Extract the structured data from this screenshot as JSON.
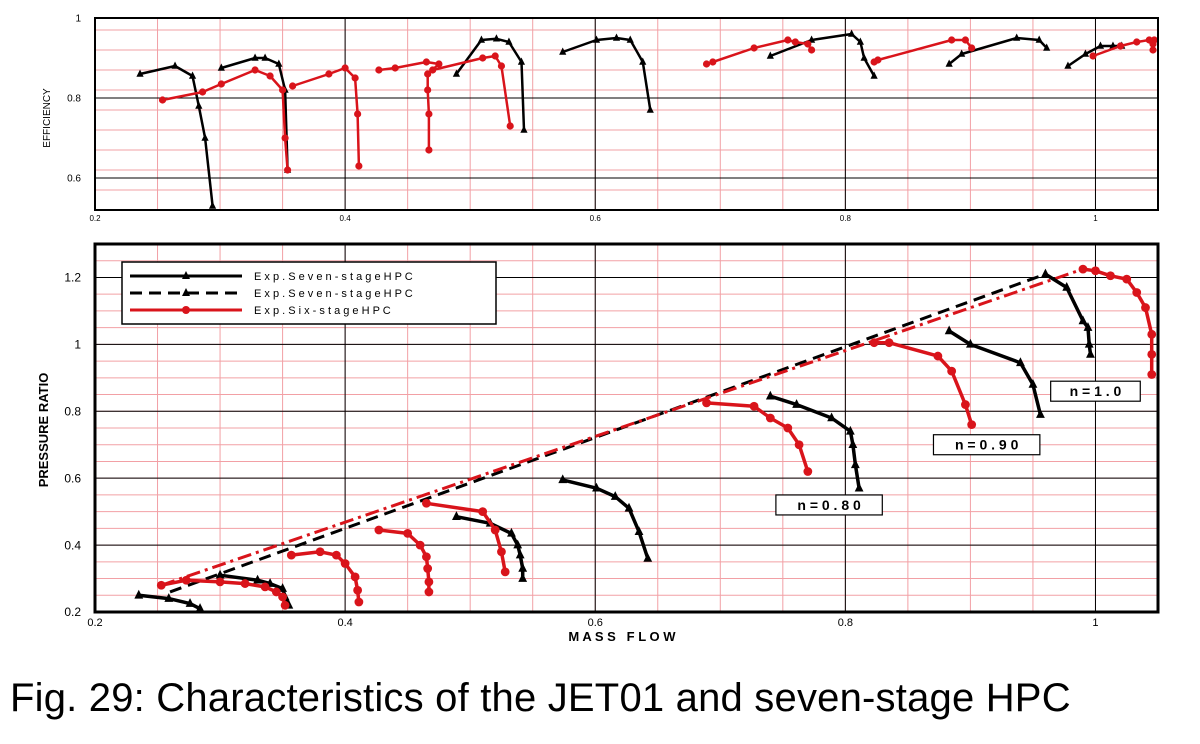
{
  "caption": "Fig. 29: Characteristics of the JET01 and seven-stage HPC",
  "chart_data": [
    {
      "type": "line",
      "id": "efficiency",
      "ylabel": "EFFICIENCY",
      "xlim": [
        0.2,
        1.05
      ],
      "ylim": [
        0.52,
        1.0
      ],
      "xticks": [
        0.2,
        0.4,
        0.6,
        0.8,
        1.0
      ],
      "xticklabels": [
        "0.2",
        "0.4",
        "0.6",
        "0.8",
        "1"
      ],
      "yticks": [
        0.6,
        0.8,
        1.0
      ],
      "yticklabels": [
        "0.6",
        "0.8",
        "1"
      ],
      "grid": true,
      "colors": {
        "exp": "#000000",
        "six": "#d9141b",
        "grid_minor": "#f2a0a5",
        "grid_major": "#000000"
      },
      "series": [
        {
          "group": "exp",
          "marker": "triangle",
          "points": [
            [
              0.236,
              0.86
            ],
            [
              0.264,
              0.88
            ],
            [
              0.278,
              0.855
            ],
            [
              0.283,
              0.78
            ],
            [
              0.288,
              0.7
            ],
            [
              0.294,
              0.53
            ]
          ]
        },
        {
          "group": "exp",
          "marker": "triangle",
          "points": [
            [
              0.301,
              0.875
            ],
            [
              0.328,
              0.9
            ],
            [
              0.336,
              0.9
            ],
            [
              0.347,
              0.885
            ],
            [
              0.352,
              0.82
            ],
            [
              0.354,
              0.62
            ]
          ]
        },
        {
          "group": "exp",
          "marker": "triangle",
          "points": [
            [
              0.489,
              0.86
            ],
            [
              0.509,
              0.945
            ],
            [
              0.521,
              0.948
            ],
            [
              0.531,
              0.94
            ],
            [
              0.541,
              0.89
            ],
            [
              0.543,
              0.72
            ]
          ]
        },
        {
          "group": "exp",
          "marker": "triangle",
          "points": [
            [
              0.574,
              0.915
            ],
            [
              0.601,
              0.945
            ],
            [
              0.617,
              0.95
            ],
            [
              0.628,
              0.945
            ],
            [
              0.638,
              0.89
            ],
            [
              0.644,
              0.77
            ]
          ]
        },
        {
          "group": "exp",
          "marker": "triangle",
          "points": [
            [
              0.74,
              0.905
            ],
            [
              0.773,
              0.945
            ],
            [
              0.805,
              0.96
            ],
            [
              0.812,
              0.94
            ],
            [
              0.815,
              0.9
            ],
            [
              0.823,
              0.855
            ]
          ]
        },
        {
          "group": "exp",
          "marker": "triangle",
          "points": [
            [
              0.883,
              0.885
            ],
            [
              0.893,
              0.91
            ],
            [
              0.937,
              0.95
            ],
            [
              0.955,
              0.945
            ],
            [
              0.961,
              0.925
            ]
          ]
        },
        {
          "group": "exp",
          "marker": "triangle",
          "points": [
            [
              0.978,
              0.88
            ],
            [
              0.992,
              0.91
            ],
            [
              1.004,
              0.93
            ],
            [
              1.014,
              0.93
            ],
            [
              1.021,
              0.93
            ]
          ]
        },
        {
          "group": "six",
          "marker": "circle",
          "points": [
            [
              0.254,
              0.795
            ],
            [
              0.286,
              0.815
            ],
            [
              0.301,
              0.835
            ],
            [
              0.328,
              0.87
            ],
            [
              0.34,
              0.855
            ],
            [
              0.35,
              0.82
            ],
            [
              0.352,
              0.7
            ],
            [
              0.354,
              0.62
            ]
          ]
        },
        {
          "group": "six",
          "marker": "circle",
          "points": [
            [
              0.358,
              0.83
            ],
            [
              0.387,
              0.86
            ],
            [
              0.4,
              0.875
            ],
            [
              0.408,
              0.85
            ],
            [
              0.41,
              0.76
            ],
            [
              0.411,
              0.63
            ]
          ]
        },
        {
          "group": "six",
          "marker": "circle",
          "points": [
            [
              0.427,
              0.87
            ],
            [
              0.44,
              0.875
            ],
            [
              0.465,
              0.89
            ],
            [
              0.475,
              0.885
            ],
            [
              0.466,
              0.86
            ],
            [
              0.466,
              0.82
            ],
            [
              0.467,
              0.76
            ],
            [
              0.467,
              0.67
            ]
          ]
        },
        {
          "group": "six",
          "marker": "circle",
          "points": [
            [
              0.47,
              0.87
            ],
            [
              0.51,
              0.9
            ],
            [
              0.52,
              0.905
            ],
            [
              0.525,
              0.88
            ],
            [
              0.532,
              0.73
            ]
          ]
        },
        {
          "group": "six",
          "marker": "circle",
          "points": [
            [
              0.689,
              0.885
            ],
            [
              0.694,
              0.89
            ],
            [
              0.727,
              0.925
            ],
            [
              0.754,
              0.945
            ],
            [
              0.76,
              0.94
            ],
            [
              0.77,
              0.935
            ],
            [
              0.773,
              0.92
            ]
          ]
        },
        {
          "group": "six",
          "marker": "circle",
          "points": [
            [
              0.823,
              0.89
            ],
            [
              0.826,
              0.895
            ],
            [
              0.885,
              0.945
            ],
            [
              0.896,
              0.945
            ],
            [
              0.901,
              0.925
            ]
          ]
        },
        {
          "group": "six",
          "marker": "circle",
          "points": [
            [
              0.998,
              0.905
            ],
            [
              1.02,
              0.93
            ],
            [
              1.033,
              0.94
            ],
            [
              1.043,
              0.945
            ],
            [
              1.047,
              0.945
            ],
            [
              1.046,
              0.935
            ],
            [
              1.046,
              0.92
            ]
          ]
        }
      ]
    },
    {
      "type": "line",
      "id": "pressure_ratio",
      "xlabel": "M A S S   F L O W",
      "ylabel": "PRESSURE RATIO",
      "xlim": [
        0.2,
        1.05
      ],
      "ylim": [
        0.2,
        1.3
      ],
      "xticks": [
        0.2,
        0.4,
        0.6,
        0.8,
        1.0
      ],
      "xticklabels": [
        "0.2",
        "0.4",
        "0.6",
        "0.8",
        "1"
      ],
      "yticks": [
        0.2,
        0.4,
        0.6,
        0.8,
        1.0,
        1.2
      ],
      "yticklabels": [
        "0.2",
        "0.4",
        "0.6",
        "0.8",
        "1",
        "1.2"
      ],
      "grid": true,
      "legend_position": "top-left",
      "legend": [
        {
          "label": "E x p . S e v e n - s t a g e  H P C",
          "style": "solid",
          "color": "#000000",
          "marker": "triangle"
        },
        {
          "label": "E x p . S e v e n - s t a g e  H P C",
          "style": "dashed",
          "color": "#000000",
          "marker": "triangle"
        },
        {
          "label": "E x p . S i x - s t a g e  H P C",
          "style": "solid",
          "color": "#d9141b",
          "marker": "circle"
        }
      ],
      "annotations": [
        {
          "text": "n = 1 . 0",
          "x": 1.0,
          "y": 0.86
        },
        {
          "text": "n = 0 . 9 0",
          "x": 0.913,
          "y": 0.7
        },
        {
          "text": "n = 0 . 8 0",
          "x": 0.787,
          "y": 0.52
        }
      ],
      "surge_lines": [
        {
          "group": "exp",
          "style": "dashed",
          "points": [
            [
              0.26,
              0.26
            ],
            [
              0.96,
              1.21
            ]
          ]
        },
        {
          "group": "six",
          "style": "dashdot",
          "points": [
            [
              0.253,
              0.28
            ],
            [
              0.99,
              1.225
            ]
          ]
        }
      ],
      "series": [
        {
          "group": "exp",
          "marker": "triangle",
          "points": [
            [
              0.235,
              0.25
            ],
            [
              0.259,
              0.24
            ],
            [
              0.276,
              0.225
            ],
            [
              0.284,
              0.21
            ]
          ]
        },
        {
          "group": "exp",
          "marker": "triangle",
          "points": [
            [
              0.3,
              0.31
            ],
            [
              0.33,
              0.295
            ],
            [
              0.34,
              0.285
            ],
            [
              0.35,
              0.27
            ],
            [
              0.352,
              0.245
            ],
            [
              0.355,
              0.22
            ]
          ]
        },
        {
          "group": "exp",
          "marker": "triangle",
          "points": [
            [
              0.489,
              0.485
            ],
            [
              0.516,
              0.465
            ],
            [
              0.533,
              0.435
            ],
            [
              0.538,
              0.4
            ],
            [
              0.54,
              0.37
            ],
            [
              0.542,
              0.33
            ],
            [
              0.542,
              0.3
            ]
          ]
        },
        {
          "group": "exp",
          "marker": "triangle",
          "points": [
            [
              0.574,
              0.595
            ],
            [
              0.601,
              0.57
            ],
            [
              0.616,
              0.545
            ],
            [
              0.627,
              0.51
            ],
            [
              0.635,
              0.44
            ],
            [
              0.642,
              0.36
            ]
          ]
        },
        {
          "group": "exp",
          "marker": "triangle",
          "points": [
            [
              0.74,
              0.845
            ],
            [
              0.761,
              0.82
            ],
            [
              0.789,
              0.78
            ],
            [
              0.804,
              0.74
            ],
            [
              0.806,
              0.7
            ],
            [
              0.808,
              0.64
            ],
            [
              0.811,
              0.57
            ]
          ]
        },
        {
          "group": "exp",
          "marker": "triangle",
          "points": [
            [
              0.883,
              1.04
            ],
            [
              0.9,
              1.0
            ],
            [
              0.94,
              0.945
            ],
            [
              0.95,
              0.88
            ],
            [
              0.956,
              0.79
            ]
          ]
        },
        {
          "group": "exp",
          "marker": "triangle",
          "points": [
            [
              0.96,
              1.21
            ],
            [
              0.977,
              1.17
            ],
            [
              0.99,
              1.07
            ],
            [
              0.994,
              1.05
            ],
            [
              0.995,
              1.0
            ],
            [
              0.996,
              0.97
            ]
          ]
        },
        {
          "group": "six",
          "marker": "circle",
          "points": [
            [
              0.253,
              0.28
            ],
            [
              0.273,
              0.295
            ],
            [
              0.3,
              0.29
            ],
            [
              0.32,
              0.285
            ],
            [
              0.336,
              0.275
            ],
            [
              0.345,
              0.26
            ],
            [
              0.35,
              0.245
            ],
            [
              0.352,
              0.22
            ]
          ]
        },
        {
          "group": "six",
          "marker": "circle",
          "points": [
            [
              0.357,
              0.37
            ],
            [
              0.38,
              0.38
            ],
            [
              0.393,
              0.37
            ],
            [
              0.4,
              0.345
            ],
            [
              0.408,
              0.305
            ],
            [
              0.41,
              0.265
            ],
            [
              0.411,
              0.23
            ]
          ]
        },
        {
          "group": "six",
          "marker": "circle",
          "points": [
            [
              0.427,
              0.445
            ],
            [
              0.45,
              0.435
            ],
            [
              0.46,
              0.4
            ],
            [
              0.465,
              0.365
            ],
            [
              0.466,
              0.33
            ],
            [
              0.467,
              0.29
            ],
            [
              0.467,
              0.26
            ]
          ]
        },
        {
          "group": "six",
          "marker": "circle",
          "points": [
            [
              0.465,
              0.525
            ],
            [
              0.51,
              0.5
            ],
            [
              0.52,
              0.445
            ],
            [
              0.525,
              0.38
            ],
            [
              0.528,
              0.32
            ]
          ]
        },
        {
          "group": "six",
          "marker": "circle",
          "points": [
            [
              0.689,
              0.825
            ],
            [
              0.727,
              0.815
            ],
            [
              0.74,
              0.78
            ],
            [
              0.754,
              0.75
            ],
            [
              0.763,
              0.7
            ],
            [
              0.77,
              0.62
            ]
          ]
        },
        {
          "group": "six",
          "marker": "circle",
          "points": [
            [
              0.823,
              1.005
            ],
            [
              0.835,
              1.005
            ],
            [
              0.874,
              0.965
            ],
            [
              0.885,
              0.92
            ],
            [
              0.896,
              0.82
            ],
            [
              0.901,
              0.76
            ]
          ]
        },
        {
          "group": "six",
          "marker": "circle",
          "points": [
            [
              0.99,
              1.225
            ],
            [
              1.0,
              1.22
            ],
            [
              1.012,
              1.205
            ],
            [
              1.025,
              1.195
            ],
            [
              1.033,
              1.155
            ],
            [
              1.04,
              1.11
            ],
            [
              1.045,
              1.03
            ],
            [
              1.045,
              0.97
            ],
            [
              1.045,
              0.91
            ]
          ]
        }
      ]
    }
  ]
}
